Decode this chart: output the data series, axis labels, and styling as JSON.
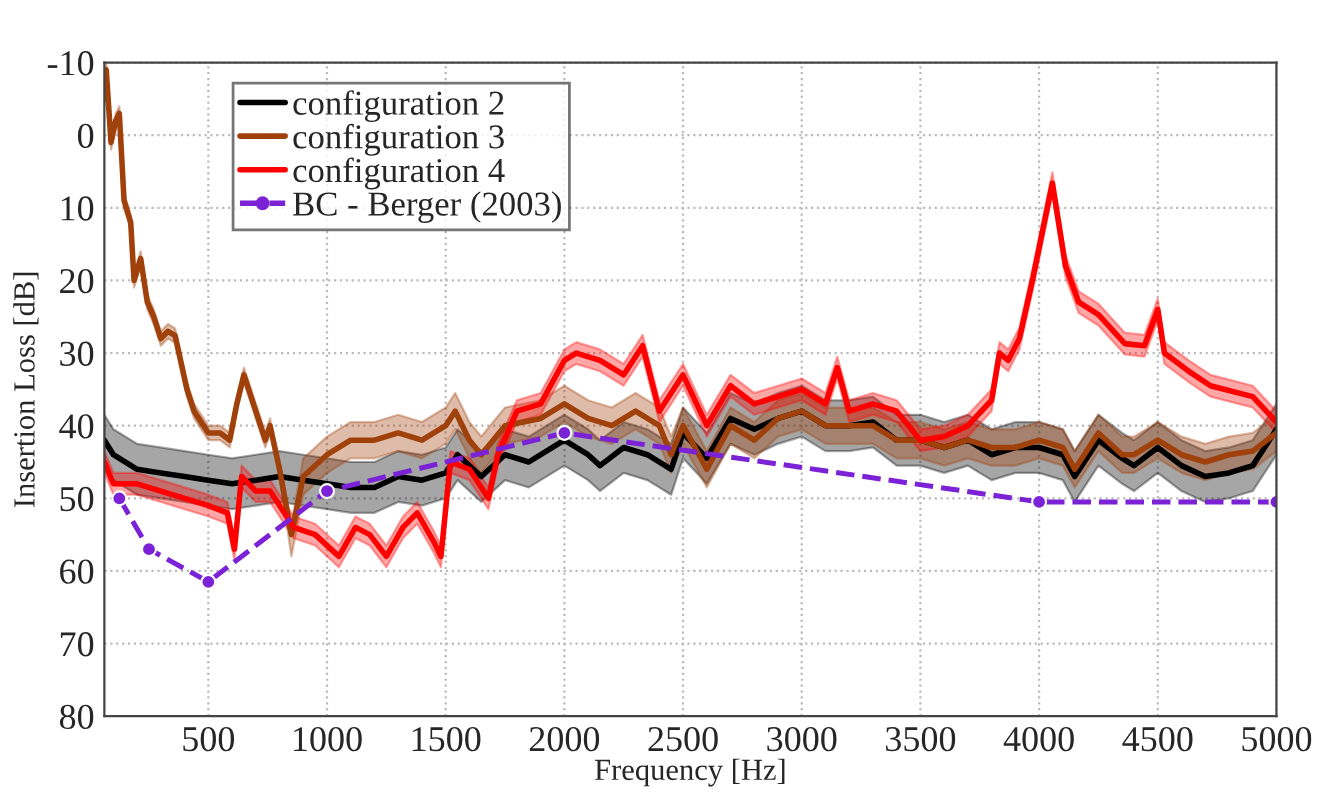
{
  "chart_data": {
    "type": "line",
    "xlabel": "Frequency [Hz]",
    "ylabel": "Insertion Loss [dB]",
    "xlim": [
      62,
      5000
    ],
    "xticks": [
      500,
      1000,
      1500,
      2000,
      2500,
      3000,
      3500,
      4000,
      4500,
      5000
    ],
    "ylim": [
      80,
      -10
    ],
    "yticks": [
      -10,
      0,
      10,
      20,
      30,
      40,
      50,
      60,
      70,
      80
    ],
    "grid": true,
    "legend": "top left",
    "marker": "none",
    "line_style": "solid",
    "series": [
      {
        "name": "configuration 2",
        "color": "#000000",
        "x": [
          62,
          100,
          200,
          300,
          400,
          500,
          600,
          700,
          800,
          900,
          1000,
          1100,
          1200,
          1300,
          1400,
          1500,
          1550,
          1650,
          1750,
          1850,
          1950,
          2000,
          2100,
          2150,
          2250,
          2350,
          2450,
          2500,
          2600,
          2700,
          2800,
          2900,
          3000,
          3100,
          3200,
          3300,
          3400,
          3500,
          3600,
          3700,
          3800,
          3900,
          4000,
          4100,
          4150,
          4250,
          4350,
          4400,
          4500,
          4600,
          4700,
          4800,
          4900,
          5000
        ],
        "values": [
          42,
          44,
          46,
          46.5,
          47,
          47.5,
          48,
          47.5,
          47,
          47.5,
          48,
          48.5,
          48.5,
          47,
          47.5,
          46.5,
          44,
          47,
          44,
          45,
          43,
          42,
          44,
          45.5,
          43,
          44,
          46,
          41,
          44.5,
          39,
          40.5,
          39,
          38,
          40,
          40,
          39.5,
          42,
          42,
          43,
          42,
          44,
          43,
          43,
          44,
          47,
          42,
          44.5,
          45.5,
          43,
          45.5,
          47,
          46.5,
          45.5,
          40.5
        ],
        "lower": [
          38.5,
          40.5,
          42.5,
          43,
          43.5,
          44,
          44.5,
          44,
          43.5,
          44,
          44.5,
          45,
          45,
          43.5,
          44,
          43,
          40.5,
          43.5,
          40.5,
          41.5,
          39.5,
          38.5,
          40.5,
          42,
          39.5,
          40.5,
          42.5,
          37.5,
          41,
          35.5,
          37,
          35.5,
          34.5,
          36.5,
          36.5,
          36,
          38.5,
          38.5,
          39.5,
          38.5,
          40.5,
          39.5,
          39.5,
          40.5,
          43.5,
          38.5,
          41,
          42,
          39.5,
          42,
          43.5,
          43,
          42,
          37
        ],
        "upper": [
          45.5,
          47.5,
          49.5,
          50,
          50.5,
          51,
          51.5,
          51,
          50.5,
          51,
          51.5,
          52,
          52,
          50.5,
          51,
          50,
          47.5,
          50.5,
          47.5,
          48.5,
          46.5,
          45.5,
          47.5,
          49,
          46.5,
          47.5,
          49.5,
          44.5,
          48,
          42.5,
          44,
          42.5,
          41.5,
          43.5,
          43.5,
          43,
          45.5,
          45.5,
          46.5,
          45.5,
          47.5,
          46.5,
          46.5,
          47.5,
          50.5,
          45.5,
          48,
          49,
          46.5,
          49,
          50.5,
          50,
          49,
          44
        ]
      },
      {
        "name": "configuration 3",
        "color": "#a0400a",
        "x": [
          62,
          70,
          90,
          110,
          125,
          145,
          173,
          187,
          215,
          243,
          270,
          300,
          330,
          360,
          410,
          440,
          500,
          550,
          590,
          620,
          650,
          700,
          740,
          760,
          800,
          850,
          900,
          1000,
          1100,
          1200,
          1300,
          1400,
          1500,
          1540,
          1600,
          1650,
          1750,
          1900,
          2000,
          2100,
          2200,
          2300,
          2400,
          2450,
          2500,
          2600,
          2700,
          2800,
          2900,
          3000,
          3100,
          3200,
          3300,
          3400,
          3500,
          3600,
          3700,
          3800,
          3900,
          4000,
          4100,
          4150,
          4250,
          4350,
          4400,
          4500,
          4600,
          4700,
          4800,
          4900,
          5000
        ],
        "values": [
          -5,
          -9,
          1,
          -2,
          -3,
          9,
          12,
          20,
          17,
          23,
          25,
          28,
          27,
          27.6,
          35,
          38,
          41,
          41,
          42,
          37,
          33,
          38,
          42,
          40,
          46,
          55,
          47,
          44,
          42,
          42,
          41,
          42,
          40,
          38,
          42,
          44,
          40,
          39,
          37,
          39,
          40,
          38,
          40,
          44,
          40,
          46,
          40,
          42,
          39,
          38,
          40,
          40,
          40,
          42,
          42,
          43,
          42,
          43,
          43,
          42,
          43,
          46,
          41,
          44,
          44,
          42,
          44,
          45,
          44,
          43.5,
          41
        ],
        "lower": [
          -6,
          -10,
          0,
          -3,
          -4,
          8,
          11,
          19,
          16,
          22,
          24,
          27,
          26,
          26.6,
          34,
          37,
          40,
          40,
          41,
          36,
          32,
          37,
          41,
          39,
          45,
          53.5,
          44.5,
          41.5,
          39.5,
          39.5,
          38.5,
          39.5,
          37.5,
          35.5,
          39.5,
          41.5,
          37.5,
          36.5,
          34.5,
          36.5,
          37.5,
          35.5,
          37.5,
          41.5,
          37.5,
          43.5,
          37.5,
          39.5,
          36.5,
          35.5,
          37.5,
          37.5,
          37.5,
          39.5,
          39.5,
          40.5,
          39.5,
          40.5,
          40.5,
          39.5,
          40.5,
          43.5,
          38.5,
          41.5,
          41.5,
          39.5,
          41.5,
          42.5,
          41.5,
          41,
          38.5
        ],
        "upper": [
          -4,
          -8,
          2,
          -1,
          -2,
          10,
          13,
          21,
          18,
          24,
          26,
          29,
          28,
          28.6,
          36,
          39,
          42,
          42,
          43,
          38,
          34,
          39,
          43,
          41,
          47,
          58,
          49.5,
          46.5,
          44.5,
          44.5,
          43.5,
          44.5,
          42.5,
          40.5,
          44.5,
          46.5,
          42.5,
          41.5,
          39.5,
          41.5,
          42.5,
          40.5,
          42.5,
          46.5,
          42.5,
          48.5,
          42.5,
          44.5,
          41.5,
          40.5,
          42.5,
          42.5,
          42.5,
          44.5,
          44.5,
          45.5,
          44.5,
          45.5,
          45.5,
          44.5,
          45.5,
          48.5,
          43.5,
          46.5,
          46.5,
          44.5,
          46.5,
          47.5,
          46.5,
          46,
          43.5
        ]
      },
      {
        "name": "configuration 4",
        "color": "#ff0000",
        "x": [
          62,
          100,
          200,
          300,
          400,
          500,
          580,
          610,
          640,
          700,
          760,
          800,
          860,
          950,
          1050,
          1120,
          1180,
          1250,
          1320,
          1380,
          1450,
          1480,
          1520,
          1600,
          1680,
          1720,
          1800,
          1900,
          2000,
          2050,
          2150,
          2250,
          2330,
          2400,
          2500,
          2600,
          2700,
          2800,
          2900,
          3000,
          3100,
          3150,
          3200,
          3300,
          3400,
          3450,
          3500,
          3600,
          3700,
          3800,
          3833,
          3870,
          3917,
          3972,
          4056,
          4111,
          4167,
          4250,
          4361,
          4444,
          4500,
          4528,
          4639,
          4722,
          4900,
          5000
        ],
        "values": [
          45,
          48,
          48,
          49,
          50,
          51,
          52,
          57,
          47,
          49,
          49,
          51,
          54,
          55,
          58,
          54,
          55,
          58,
          54,
          52,
          56,
          58,
          45,
          46,
          50,
          44,
          38,
          37,
          31,
          30,
          31,
          33,
          29,
          38,
          33,
          40,
          34.5,
          37,
          36,
          35,
          37,
          32,
          38,
          37,
          38,
          40,
          42,
          41.5,
          40,
          36.5,
          30,
          31,
          28,
          20,
          6.6,
          18,
          23,
          24.7,
          28.7,
          29,
          24,
          30,
          32.7,
          34.5,
          36,
          39.5
        ],
        "lower": [
          43.5,
          46.5,
          46.5,
          47.5,
          48.5,
          49.5,
          50.5,
          55.5,
          45.5,
          47.5,
          47.5,
          49.5,
          52.5,
          53.5,
          56.5,
          52.5,
          53.5,
          56.5,
          52.5,
          50.5,
          54.5,
          56.5,
          43.5,
          44.5,
          48.5,
          42.5,
          36.5,
          35.5,
          29.5,
          28.5,
          29.5,
          31.5,
          27.5,
          36.5,
          31.5,
          38.5,
          33,
          35.5,
          34.5,
          33.5,
          35.5,
          30.5,
          36.5,
          35.5,
          36.5,
          38.5,
          40.5,
          40,
          38.5,
          35,
          28.5,
          29.5,
          26.5,
          18.5,
          5.1,
          16.5,
          21.5,
          23.2,
          27.2,
          27.5,
          22.5,
          28.5,
          31.2,
          33,
          34.5,
          38
        ],
        "upper": [
          46.5,
          49.5,
          49.5,
          50.5,
          51.5,
          52.5,
          53.5,
          58.5,
          48.5,
          50.5,
          50.5,
          52.5,
          55.5,
          56.5,
          59.5,
          55.5,
          56.5,
          59.5,
          55.5,
          53.5,
          57.5,
          59.5,
          46.5,
          47.5,
          51.5,
          45.5,
          39.5,
          38.5,
          32.5,
          31.5,
          32.5,
          34.5,
          30.5,
          39.5,
          34.5,
          41.5,
          36,
          38.5,
          37.5,
          36.5,
          38.5,
          33.5,
          39.5,
          38.5,
          39.5,
          41.5,
          43.5,
          43,
          41.5,
          38,
          31.5,
          32.5,
          29.5,
          21.5,
          8.1,
          19.5,
          24.5,
          26.2,
          30.2,
          30.5,
          25.5,
          31.5,
          34.2,
          36,
          37.5,
          41
        ]
      },
      {
        "name": "BC - Berger (2003)",
        "color": "#7b22d6",
        "marker": "circle",
        "line_style": "dashed",
        "x": [
          125,
          250,
          500,
          1000,
          2000,
          4000,
          5000
        ],
        "values": [
          50,
          57,
          61.5,
          49,
          41,
          50.5,
          50.5
        ]
      }
    ]
  }
}
